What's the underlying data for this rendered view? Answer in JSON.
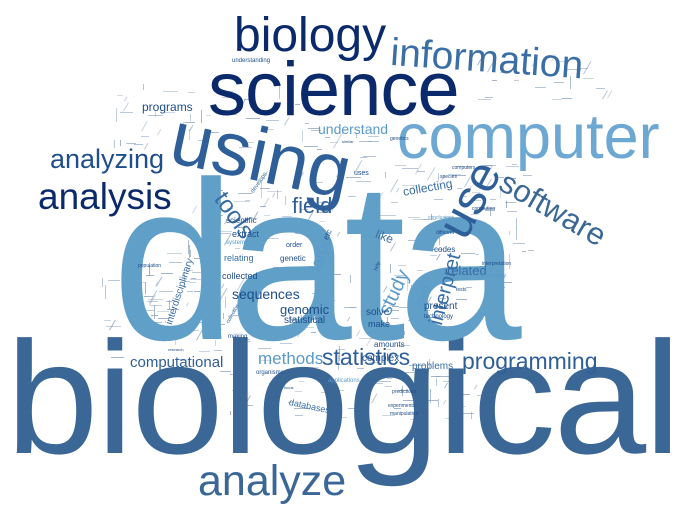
{
  "palette": {
    "darkest": "#0b2a6b",
    "dark": "#1f4e8c",
    "mid": "#3a6ea5",
    "light": "#5b9ac9",
    "lightest": "#7fb3d8"
  },
  "words": [
    {
      "text": "biological",
      "color": "#3a6795"
    },
    {
      "text": "data",
      "color": "#5f9fc8"
    },
    {
      "text": "science",
      "color": "#0b2a6b"
    },
    {
      "text": "computer",
      "color": "#6ca8d2"
    },
    {
      "text": "using",
      "color": "#2f5f99"
    },
    {
      "text": "biology",
      "color": "#0b2a6b"
    },
    {
      "text": "information",
      "color": "#3a6ea5"
    },
    {
      "text": "analysis",
      "color": "#0b2a6b"
    },
    {
      "text": "analyzing",
      "color": "#1f4e8c"
    },
    {
      "text": "analyze",
      "color": "#3a6795"
    },
    {
      "text": "use",
      "color": "#2f5f99"
    },
    {
      "text": "software",
      "color": "#3a6795"
    },
    {
      "text": "statistics",
      "color": "#2f5f99"
    },
    {
      "text": "programming",
      "color": "#2f5f99"
    },
    {
      "text": "tools",
      "color": "#3a6ea5"
    },
    {
      "text": "field",
      "color": "#2f5f99"
    },
    {
      "text": "computational",
      "color": "#2f5f99"
    },
    {
      "text": "methods",
      "color": "#5b9ac9"
    },
    {
      "text": "study",
      "color": "#5b9ac9"
    },
    {
      "text": "interpret",
      "color": "#3a6ea5"
    },
    {
      "text": "understand",
      "color": "#5b9ac9"
    },
    {
      "text": "genomic",
      "color": "#1f4e8c"
    },
    {
      "text": "sequences",
      "color": "#1f4e8c"
    },
    {
      "text": "programs",
      "color": "#1f4e8c"
    },
    {
      "text": "related",
      "color": "#3a6ea5"
    },
    {
      "text": "collecting",
      "color": "#3a6ea5"
    },
    {
      "text": "large",
      "color": "#5b9ac9"
    },
    {
      "text": "like",
      "color": "#3a6ea5"
    },
    {
      "text": "used",
      "color": "#5b9ac9"
    },
    {
      "text": "problems",
      "color": "#3a6ea5"
    },
    {
      "text": "interdisciplinary",
      "color": "#3a6ea5"
    },
    {
      "text": "statistical",
      "color": "#1f4e8c"
    },
    {
      "text": "solve",
      "color": "#1f4e8c"
    },
    {
      "text": "make",
      "color": "#1f4e8c"
    },
    {
      "text": "complex",
      "color": "#1f4e8c"
    },
    {
      "text": "present",
      "color": "#1f4e8c"
    },
    {
      "text": "amounts",
      "color": "#1f4e8c"
    },
    {
      "text": "collected",
      "color": "#1f4e8c"
    },
    {
      "text": "relating",
      "color": "#3a6ea5"
    },
    {
      "text": "extract",
      "color": "#1f4e8c"
    },
    {
      "text": "scientific",
      "color": "#1f4e8c"
    },
    {
      "text": "genetic",
      "color": "#1f4e8c"
    },
    {
      "text": "codes",
      "color": "#1f4e8c"
    },
    {
      "text": "databases",
      "color": "#3a6ea5"
    },
    {
      "text": "develops",
      "color": "#3a6ea5"
    },
    {
      "text": "uses",
      "color": "#1f4e8c"
    },
    {
      "text": "order",
      "color": "#1f4e8c"
    },
    {
      "text": "etc",
      "color": "#1f4e8c"
    },
    {
      "text": "technology",
      "color": "#1f4e8c"
    },
    {
      "text": "understanding",
      "color": "#1f4e8c"
    },
    {
      "text": "organisms",
      "color": "#1f4e8c"
    },
    {
      "text": "applications",
      "color": "#5b9ac9"
    },
    {
      "text": "making",
      "color": "#1f4e8c"
    },
    {
      "text": "population",
      "color": "#1f4e8c"
    },
    {
      "text": "systems",
      "color": "#5b9ac9"
    },
    {
      "text": "predictions",
      "color": "#1f4e8c"
    },
    {
      "text": "experiments",
      "color": "#1f4e8c"
    },
    {
      "text": "manipulation",
      "color": "#1f4e8c"
    },
    {
      "text": "computing",
      "color": "#1f4e8c"
    },
    {
      "text": "different",
      "color": "#1f4e8c"
    },
    {
      "text": "conclusions",
      "color": "#5b9ac9"
    },
    {
      "text": "interpretation",
      "color": "#1f4e8c"
    },
    {
      "text": "community",
      "color": "#5b9ac9"
    },
    {
      "text": "tests",
      "color": "#1f4e8c"
    },
    {
      "text": "genetics",
      "color": "#1f4e8c"
    },
    {
      "text": "species",
      "color": "#1f4e8c"
    },
    {
      "text": "computers",
      "color": "#1f4e8c"
    },
    {
      "text": "similar",
      "color": "#1f4e8c"
    },
    {
      "text": "focus",
      "color": "#1f4e8c"
    },
    {
      "text": "collection",
      "color": "#1f4e8c"
    },
    {
      "text": "research",
      "color": "#1f4e8c"
    },
    {
      "text": "help",
      "color": "#1f4e8c"
    }
  ],
  "filler_color": "#7f99b8"
}
